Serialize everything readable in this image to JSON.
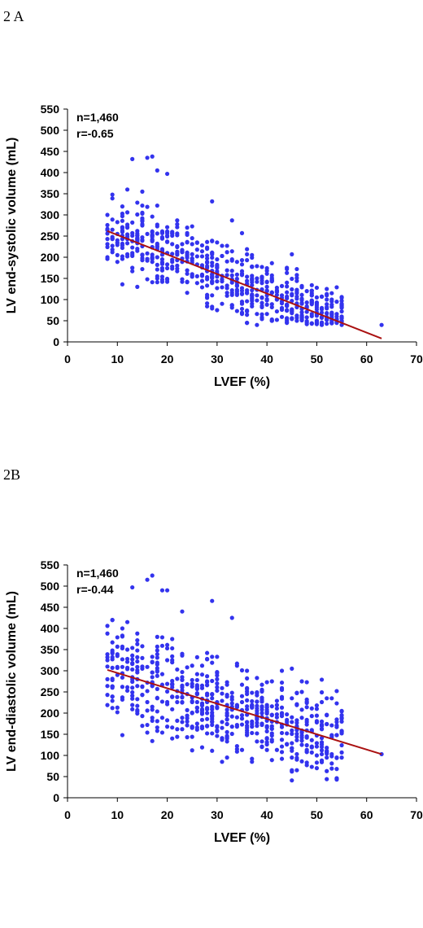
{
  "chart_data": [
    {
      "type": "scatter",
      "panel_label": "2 A",
      "xlabel": "LVEF (%)",
      "ylabel": "LV end-systolic volume (mL)",
      "xlim": [
        0,
        70
      ],
      "ylim": [
        0,
        550
      ],
      "xticks": [
        0,
        10,
        20,
        30,
        40,
        50,
        60,
        70
      ],
      "yticks": [
        0,
        50,
        100,
        150,
        200,
        250,
        300,
        350,
        400,
        450,
        500,
        550
      ],
      "annotations": [
        "n=1,460",
        "r=-0.65"
      ],
      "point_color": "#3333ee",
      "fit_color": "#aa1111",
      "fit_line": {
        "x": [
          8,
          63
        ],
        "y": [
          262,
          8
        ]
      },
      "points": {
        "xmin": 8,
        "xmax": 55,
        "slope": -4.6,
        "intercept": 300,
        "spread": 60,
        "seed": 11,
        "extra": [
          [
            8,
            300
          ],
          [
            63,
            40
          ],
          [
            13,
            432
          ],
          [
            16,
            435
          ],
          [
            17,
            438
          ],
          [
            18,
            405
          ],
          [
            20,
            397
          ],
          [
            29,
            332
          ],
          [
            33,
            287
          ],
          [
            12,
            360
          ],
          [
            15,
            355
          ],
          [
            55,
            90
          ],
          [
            55,
            60
          ],
          [
            53,
            115
          ],
          [
            52,
            113
          ],
          [
            49,
            93
          ],
          [
            51,
            57
          ],
          [
            54,
            50
          ]
        ]
      }
    },
    {
      "type": "scatter",
      "panel_label": "2B",
      "xlabel": "LVEF (%)",
      "ylabel": "LV end-diastolic volume (mL)",
      "xlim": [
        0,
        70
      ],
      "ylim": [
        0,
        550
      ],
      "xticks": [
        0,
        10,
        20,
        30,
        40,
        50,
        60,
        70
      ],
      "yticks": [
        0,
        50,
        100,
        150,
        200,
        250,
        300,
        350,
        400,
        450,
        500,
        550
      ],
      "annotations": [
        "n=1,460",
        "r=-0.44"
      ],
      "point_color": "#3333ee",
      "fit_color": "#aa1111",
      "fit_line": {
        "x": [
          8,
          63
        ],
        "y": [
          302,
          103
        ]
      },
      "points": {
        "xmin": 8,
        "xmax": 55,
        "slope": -3.6,
        "intercept": 330,
        "spread": 75,
        "seed": 29,
        "extra": [
          [
            8,
            325
          ],
          [
            63,
            103
          ],
          [
            13,
            497
          ],
          [
            16,
            515
          ],
          [
            17,
            525
          ],
          [
            19,
            490
          ],
          [
            20,
            490
          ],
          [
            23,
            440
          ],
          [
            29,
            465
          ],
          [
            33,
            425
          ],
          [
            12,
            415
          ],
          [
            55,
            195
          ],
          [
            55,
            180
          ],
          [
            54,
            95
          ],
          [
            52,
            95
          ],
          [
            53,
            235
          ],
          [
            52,
            235
          ],
          [
            50,
            210
          ],
          [
            51,
            170
          ]
        ]
      }
    }
  ]
}
